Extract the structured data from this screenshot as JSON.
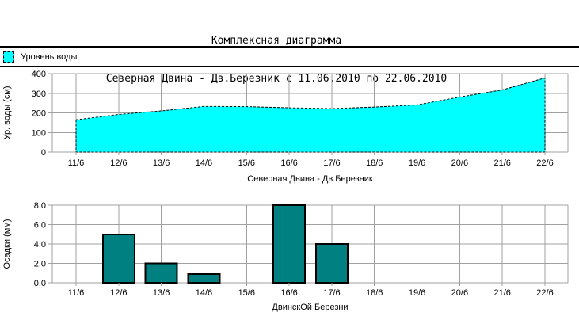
{
  "title": {
    "line1": "Комплексная диаграмма",
    "line2": "Северная Двина - Дв.Березник с 11.06.2010 по 22.06.2010"
  },
  "legend": {
    "label": "Уровень воды",
    "marker_color": "#00ffff"
  },
  "colors": {
    "area_fill": "#00ffff",
    "bar_fill": "#008080",
    "grid": "#a0a0a0",
    "text": "#000000",
    "separator": "#000000"
  },
  "chart_data": [
    {
      "type": "area",
      "title": "Северная Двина - Дв.Березник",
      "ylabel": "Ур. воды (см)",
      "series_name": "Уровень воды",
      "categories": [
        "11/6",
        "12/6",
        "13/6",
        "14/6",
        "15/6",
        "16/6",
        "17/6",
        "18/6",
        "19/6",
        "20/6",
        "21/6",
        "22/6"
      ],
      "values": [
        165,
        192,
        210,
        233,
        232,
        226,
        222,
        230,
        241,
        281,
        317,
        378
      ],
      "ylim": [
        0,
        400
      ],
      "yticks": [
        0,
        100,
        200,
        300,
        400
      ],
      "ytick_labels": [
        "0",
        "100",
        "200",
        "300",
        "400"
      ],
      "grid": true,
      "fill_color": "#00ffff",
      "line_style": "dashed-black"
    },
    {
      "type": "bar",
      "title": "ДвинскОй Березни",
      "ylabel": "Осадки (мм)",
      "categories": [
        "11/6",
        "12/6",
        "13/6",
        "14/6",
        "15/6",
        "16/6",
        "17/6",
        "18/6",
        "19/6",
        "20/6",
        "21/6",
        "22/6"
      ],
      "values": [
        0,
        5.0,
        2.0,
        0.9,
        0,
        8.0,
        4.0,
        0,
        0,
        0,
        0,
        0
      ],
      "ylim": [
        0,
        8
      ],
      "yticks": [
        0,
        2,
        4,
        6,
        8
      ],
      "ytick_labels": [
        "0,0",
        "2,0",
        "4,0",
        "6,0",
        "8,0"
      ],
      "grid": true,
      "fill_color": "#008080"
    }
  ]
}
